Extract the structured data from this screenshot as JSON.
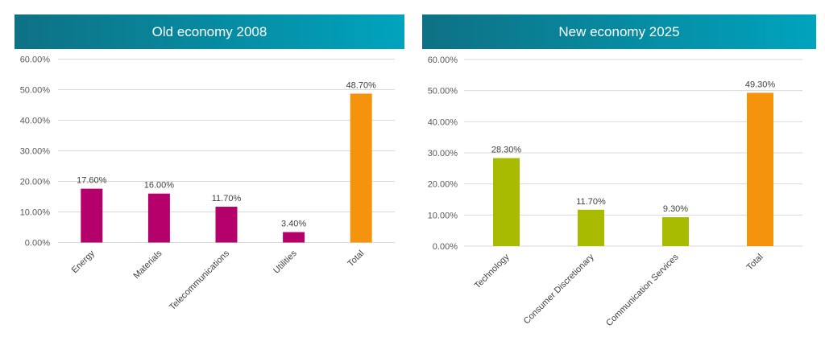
{
  "charts": {
    "left": {
      "header": "Old economy 2008",
      "header_gradient": [
        "#0e7184",
        "#00a3bd"
      ],
      "bar_color": "#b5006b",
      "total_color": "#f5930d"
    },
    "right": {
      "header": "New economy 2025",
      "header_gradient": [
        "#0e7184",
        "#00a3bd"
      ],
      "bar_color": "#a8bb00",
      "total_color": "#f5930d"
    }
  },
  "chart_data": [
    {
      "type": "bar",
      "title": "Old economy 2008",
      "categories": [
        "Energy",
        "Materials",
        "Telecommunications",
        "Utilities",
        "Total"
      ],
      "values": [
        17.6,
        16.0,
        11.7,
        3.4,
        48.7
      ],
      "data_labels": [
        "17.60%",
        "16.00%",
        "11.70%",
        "3.40%",
        "48.70%"
      ],
      "y_ticks": [
        "0.00%",
        "10.00%",
        "20.00%",
        "30.00%",
        "40.00%",
        "50.00%",
        "60.00%"
      ],
      "ylim": [
        0,
        60
      ],
      "xlabel": "",
      "ylabel": "",
      "grid": true
    },
    {
      "type": "bar",
      "title": "New economy 2025",
      "categories": [
        "Technology",
        "Consumer Discretionary",
        "Communication Services",
        "Total"
      ],
      "values": [
        28.3,
        11.7,
        9.3,
        49.3
      ],
      "data_labels": [
        "28.30%",
        "11.70%",
        "9.30%",
        "49.30%"
      ],
      "y_ticks": [
        "0.00%",
        "10.00%",
        "20.00%",
        "30.00%",
        "40.00%",
        "50.00%",
        "60.00%"
      ],
      "ylim": [
        0,
        60
      ],
      "xlabel": "",
      "ylabel": "",
      "grid": true
    }
  ]
}
